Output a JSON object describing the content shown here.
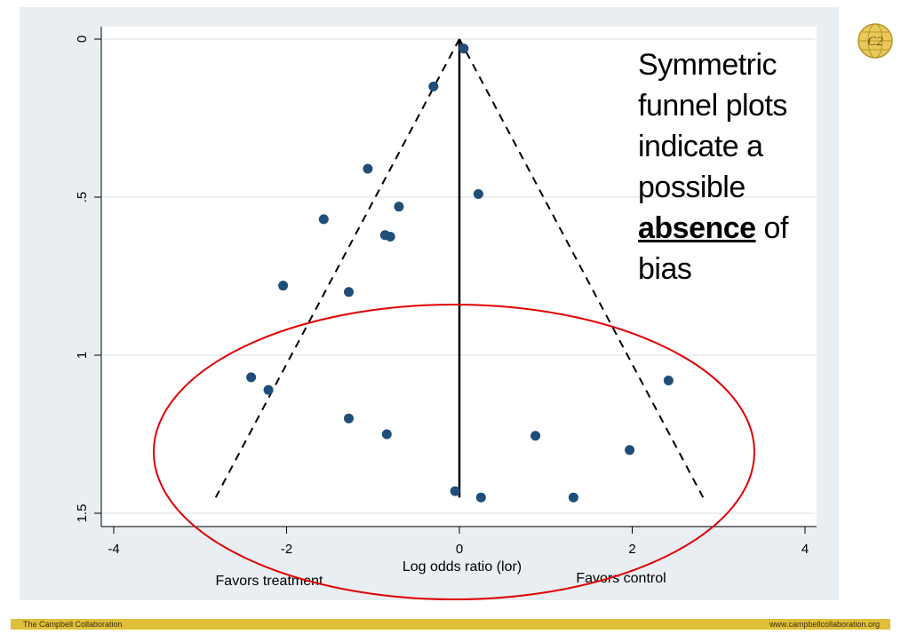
{
  "annotation": {
    "line1": "Symmetric funnel plots indicate a possible",
    "emph": "absence",
    "line2": "of bias"
  },
  "footer": {
    "left": "The Campbell Collaboration",
    "right": "www.campbellcollaboration.org"
  },
  "logo_text": "C2",
  "chart_data": {
    "type": "scatter",
    "xlabel": "Log odds ratio (lor)",
    "ylabel": "",
    "xlim": [
      -4,
      4
    ],
    "ylim": [
      1.5,
      0
    ],
    "y_reversed": true,
    "x_ticks": [
      "-4",
      "-2",
      "0",
      "2",
      "4"
    ],
    "y_ticks": [
      "0",
      ".5",
      "1",
      "1.5"
    ],
    "x_tick_values": [
      -4,
      -2,
      0,
      2,
      4
    ],
    "y_tick_values": [
      0,
      0.5,
      1,
      1.5
    ],
    "grid": true,
    "points": [
      {
        "x": 0.05,
        "y": 0.03
      },
      {
        "x": -0.3,
        "y": 0.15
      },
      {
        "x": -1.06,
        "y": 0.41
      },
      {
        "x": 0.22,
        "y": 0.49
      },
      {
        "x": -0.7,
        "y": 0.53
      },
      {
        "x": -1.57,
        "y": 0.57
      },
      {
        "x": -0.86,
        "y": 0.62
      },
      {
        "x": -0.8,
        "y": 0.625
      },
      {
        "x": -2.04,
        "y": 0.78
      },
      {
        "x": -1.28,
        "y": 0.8
      },
      {
        "x": -2.41,
        "y": 1.07
      },
      {
        "x": -2.21,
        "y": 1.11
      },
      {
        "x": 2.42,
        "y": 1.08
      },
      {
        "x": -1.28,
        "y": 1.2
      },
      {
        "x": -0.84,
        "y": 1.25
      },
      {
        "x": 0.88,
        "y": 1.255
      },
      {
        "x": 1.97,
        "y": 1.3
      },
      {
        "x": -0.05,
        "y": 1.43
      },
      {
        "x": 0.25,
        "y": 1.45
      },
      {
        "x": 1.32,
        "y": 1.45
      }
    ],
    "funnel": {
      "apex": [
        0,
        0
      ],
      "left_base": [
        -2.82,
        1.45
      ],
      "right_base": [
        2.82,
        1.45
      ]
    },
    "reference_line_x": 0,
    "annotations": [
      "Favors treatment",
      "Favors control"
    ],
    "highlight": "ellipse around studies with larger standard error",
    "colors": {
      "points": "#1f4e79",
      "ellipse": "#e00000",
      "grid": "#eaf0f3",
      "stata_bg": "#e8eef2"
    }
  }
}
